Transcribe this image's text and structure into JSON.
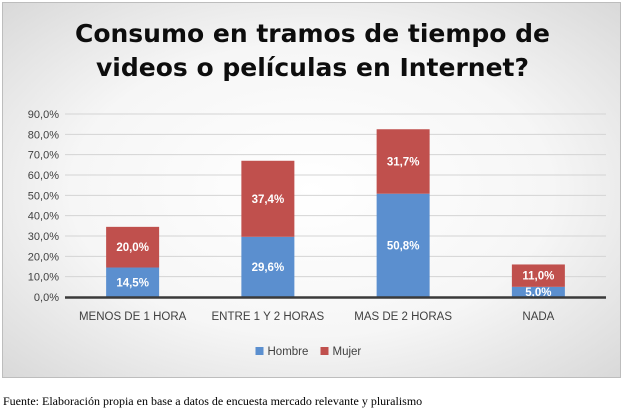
{
  "chart_data": {
    "type": "bar",
    "stacked": true,
    "title": "Consumo en tramos de tiempo de\nvideos o películas en Internet?",
    "categories": [
      "MENOS DE 1 HORA",
      "ENTRE 1 Y 2 HORAS",
      "MAS DE 2 HORAS",
      "NADA"
    ],
    "series": [
      {
        "name": "Hombre",
        "color": "#5b8fcf",
        "values": [
          14.5,
          29.6,
          50.8,
          5.0
        ],
        "labels": [
          "14,5%",
          "29,6%",
          "50,8%",
          "5,0%"
        ]
      },
      {
        "name": "Mujer",
        "color": "#c0504d",
        "values": [
          20.0,
          37.4,
          31.7,
          11.0
        ],
        "labels": [
          "20,0%",
          "37,4%",
          "31,7%",
          "11,0%"
        ]
      }
    ],
    "ylim": [
      0,
      90
    ],
    "yticks": [
      "0,0%",
      "10,0%",
      "20,0%",
      "30,0%",
      "40,0%",
      "50,0%",
      "60,0%",
      "70,0%",
      "80,0%",
      "90,0%"
    ],
    "grid": true,
    "legend": "bottom"
  },
  "source": "Fuente: Elaboración propia en base a datos de encuesta mercado relevante y pluralismo"
}
